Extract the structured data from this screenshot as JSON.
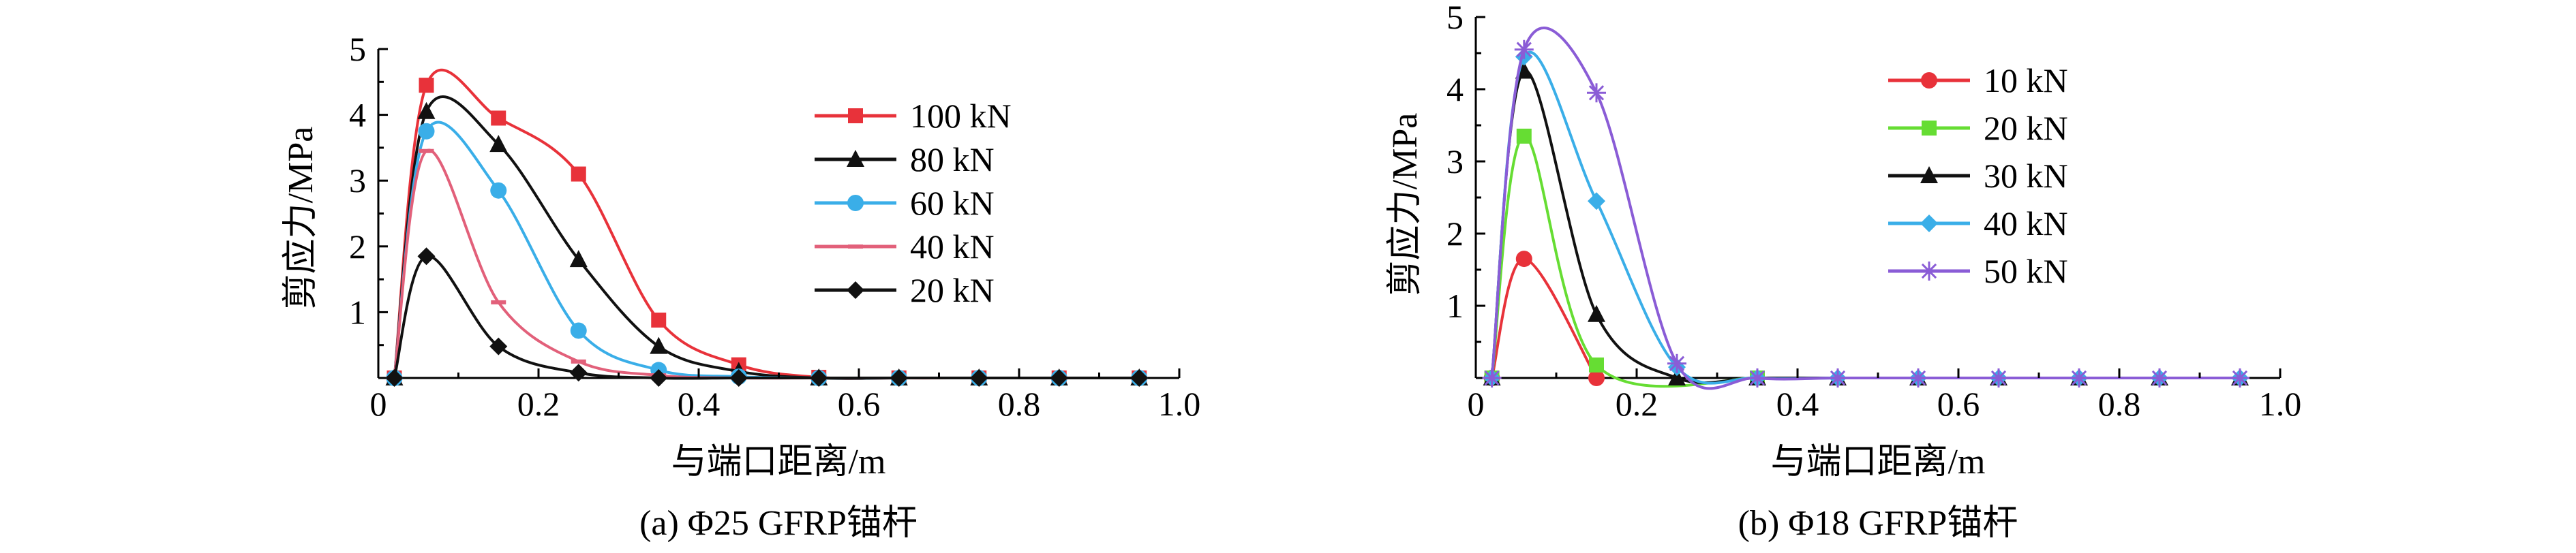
{
  "chart_data": [
    {
      "type": "line",
      "caption": "(a) Φ25 GFRP锚杆",
      "xlabel": "与端口距离/m",
      "ylabel": "剪应力/MPa",
      "xlim": [
        0,
        1.0
      ],
      "ylim": [
        0,
        5
      ],
      "xticks": [
        "0",
        "0.2",
        "0.4",
        "0.6",
        "0.8",
        "1.0"
      ],
      "yticks": [
        "1",
        "2",
        "3",
        "4",
        "5"
      ],
      "legend_position": "top-right",
      "series": [
        {
          "name": "100 kN",
          "color": "#e8323a",
          "marker": "square",
          "points": [
            [
              0.02,
              0
            ],
            [
              0.06,
              4.45
            ],
            [
              0.15,
              3.95
            ],
            [
              0.25,
              3.1
            ],
            [
              0.35,
              0.88
            ],
            [
              0.45,
              0.2
            ],
            [
              0.55,
              0.01
            ],
            [
              0.65,
              0
            ],
            [
              0.75,
              0
            ],
            [
              0.85,
              0
            ],
            [
              0.95,
              0
            ]
          ]
        },
        {
          "name": "80 kN",
          "color": "#111111",
          "marker": "triangle",
          "points": [
            [
              0.02,
              0
            ],
            [
              0.06,
              4.05
            ],
            [
              0.15,
              3.55
            ],
            [
              0.25,
              1.8
            ],
            [
              0.35,
              0.48
            ],
            [
              0.45,
              0.1
            ],
            [
              0.55,
              0
            ],
            [
              0.65,
              0
            ],
            [
              0.75,
              0
            ],
            [
              0.85,
              0
            ],
            [
              0.95,
              0
            ]
          ]
        },
        {
          "name": "60 kN",
          "color": "#3aaee8",
          "marker": "circle",
          "points": [
            [
              0.02,
              0
            ],
            [
              0.06,
              3.75
            ],
            [
              0.15,
              2.85
            ],
            [
              0.25,
              0.72
            ],
            [
              0.35,
              0.12
            ],
            [
              0.45,
              0.02
            ],
            [
              0.55,
              0
            ],
            [
              0.65,
              0
            ],
            [
              0.75,
              0
            ],
            [
              0.85,
              0
            ],
            [
              0.95,
              0
            ]
          ]
        },
        {
          "name": "40 kN",
          "color": "#e2607a",
          "marker": "dash",
          "points": [
            [
              0.02,
              0
            ],
            [
              0.06,
              3.45
            ],
            [
              0.15,
              1.15
            ],
            [
              0.25,
              0.25
            ],
            [
              0.35,
              0.04
            ],
            [
              0.45,
              0
            ],
            [
              0.55,
              0
            ],
            [
              0.65,
              0
            ],
            [
              0.75,
              0
            ],
            [
              0.85,
              0
            ],
            [
              0.95,
              0
            ]
          ]
        },
        {
          "name": "20 kN",
          "color": "#111111",
          "marker": "diamond",
          "points": [
            [
              0.02,
              0
            ],
            [
              0.06,
              1.85
            ],
            [
              0.15,
              0.48
            ],
            [
              0.25,
              0.08
            ],
            [
              0.35,
              0
            ],
            [
              0.45,
              0
            ],
            [
              0.55,
              0
            ],
            [
              0.65,
              0
            ],
            [
              0.75,
              0
            ],
            [
              0.85,
              0
            ],
            [
              0.95,
              0
            ]
          ]
        }
      ]
    },
    {
      "type": "line",
      "caption": "(b) Φ18 GFRP锚杆",
      "xlabel": "与端口距离/m",
      "ylabel": "剪应力/MPa",
      "xlim": [
        0,
        1.0
      ],
      "ylim": [
        0,
        5
      ],
      "xticks": [
        "0",
        "0.2",
        "0.4",
        "0.6",
        "0.8",
        "1.0"
      ],
      "yticks": [
        "1",
        "2",
        "3",
        "4",
        "5"
      ],
      "legend_position": "top-center",
      "series": [
        {
          "name": "10 kN",
          "color": "#e8323a",
          "marker": "circle",
          "points": [
            [
              0.02,
              0
            ],
            [
              0.06,
              1.65
            ],
            [
              0.15,
              0
            ]
          ]
        },
        {
          "name": "20 kN",
          "color": "#66dd33",
          "marker": "square",
          "points": [
            [
              0.02,
              0
            ],
            [
              0.06,
              3.35
            ],
            [
              0.15,
              0.18
            ],
            [
              0.35,
              0
            ]
          ]
        },
        {
          "name": "30 kN",
          "color": "#111111",
          "marker": "triangle",
          "points": [
            [
              0.02,
              0
            ],
            [
              0.06,
              4.25
            ],
            [
              0.15,
              0.88
            ],
            [
              0.25,
              0
            ],
            [
              0.35,
              0
            ],
            [
              0.45,
              0
            ],
            [
              0.55,
              0
            ],
            [
              0.65,
              0
            ],
            [
              0.75,
              0
            ],
            [
              0.85,
              0
            ],
            [
              0.95,
              0
            ]
          ]
        },
        {
          "name": "40 kN",
          "color": "#3aaee8",
          "marker": "diamond",
          "points": [
            [
              0.02,
              0
            ],
            [
              0.06,
              4.45
            ],
            [
              0.15,
              2.45
            ],
            [
              0.25,
              0.15
            ],
            [
              0.35,
              0
            ],
            [
              0.45,
              0
            ],
            [
              0.55,
              0
            ],
            [
              0.65,
              0
            ],
            [
              0.75,
              0
            ],
            [
              0.85,
              0
            ],
            [
              0.95,
              0
            ]
          ]
        },
        {
          "name": "50 kN",
          "color": "#8a5cd6",
          "marker": "star",
          "points": [
            [
              0.02,
              0
            ],
            [
              0.06,
              4.55
            ],
            [
              0.15,
              3.95
            ],
            [
              0.25,
              0.2
            ],
            [
              0.35,
              0
            ],
            [
              0.45,
              0
            ],
            [
              0.55,
              0
            ],
            [
              0.65,
              0
            ],
            [
              0.75,
              0
            ],
            [
              0.85,
              0
            ],
            [
              0.95,
              0
            ]
          ]
        }
      ]
    }
  ]
}
